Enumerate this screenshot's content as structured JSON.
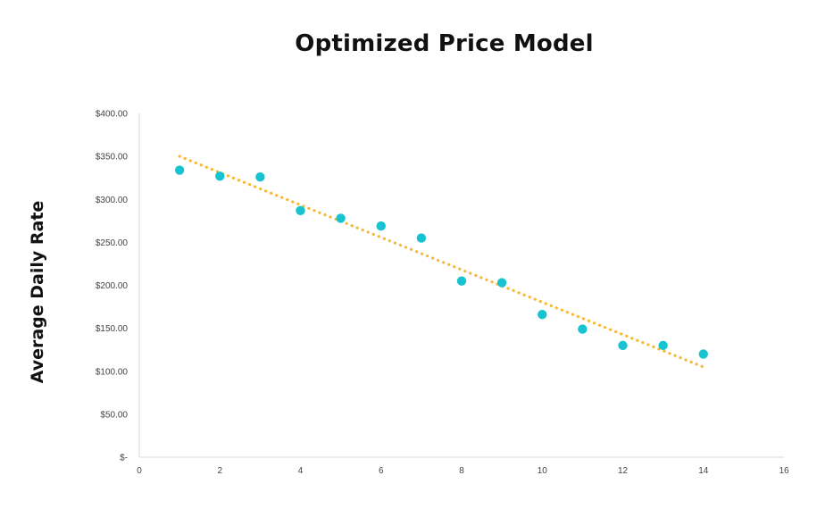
{
  "chart_data": {
    "type": "scatter",
    "title": "Optimized Price Model",
    "ylabel": "Average Daily Rate",
    "xlabel": "",
    "xlim": [
      0,
      16
    ],
    "ylim": [
      0,
      400
    ],
    "x_ticks": [
      0,
      2,
      4,
      6,
      8,
      10,
      12,
      14,
      16
    ],
    "x_tick_labels": [
      "0",
      "2",
      "4",
      "6",
      "8",
      "10",
      "12",
      "14",
      "16"
    ],
    "y_ticks": [
      0,
      50,
      100,
      150,
      200,
      250,
      300,
      350,
      400
    ],
    "y_tick_labels": [
      "$-",
      "$50.00",
      "$100.00",
      "$150.00",
      "$200.00",
      "$250.00",
      "$300.00",
      "$350.00",
      "$400.00"
    ],
    "grid": false,
    "series": [
      {
        "x": [
          1,
          2,
          3,
          4,
          5,
          6,
          7,
          8,
          9,
          10,
          11,
          12,
          13,
          14
        ],
        "y": [
          334,
          327,
          326,
          287,
          278,
          269,
          255,
          205,
          203,
          166,
          149,
          130,
          130,
          120
        ],
        "color": "#17c3d1"
      }
    ],
    "trendline": {
      "type": "linear",
      "x": [
        1,
        14
      ],
      "y": [
        350,
        105
      ],
      "color": "#f7b731",
      "style": "dotted"
    }
  }
}
